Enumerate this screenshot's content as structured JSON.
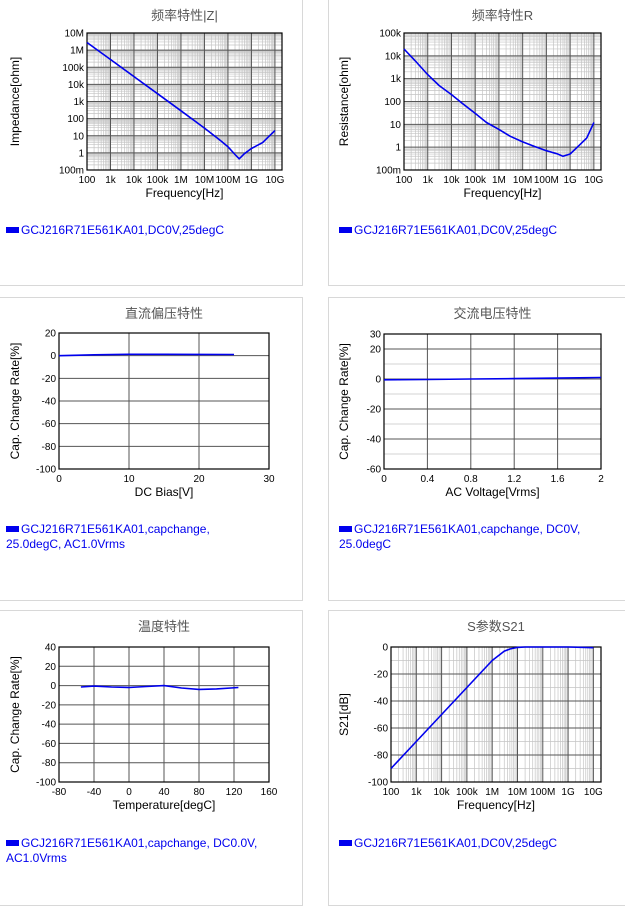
{
  "colors": {
    "series": "#0000ee",
    "grid_major": "#555555",
    "grid_minor": "#c4c4c4",
    "text": "#000000",
    "title": "#555555"
  },
  "chart_data": [
    {
      "id": "freq-z",
      "type": "line",
      "title": "频率特性|Z|",
      "xlabel": "Frequency[Hz]",
      "ylabel": "Impedance[ohm]",
      "xscale": "log",
      "yscale": "log",
      "xlim": [
        100,
        20000000000
      ],
      "ylim": [
        0.1,
        10000000
      ],
      "xticks": [
        100,
        1000,
        10000,
        100000,
        1000000,
        10000000,
        100000000,
        1000000000,
        10000000000
      ],
      "xtick_labels": [
        "100",
        "1k",
        "10k",
        "100k",
        "1M",
        "10M",
        "100M",
        "1G",
        "10G"
      ],
      "yticks": [
        0.1,
        1,
        10,
        100,
        1000,
        10000,
        100000,
        1000000,
        10000000
      ],
      "ytick_labels": [
        "100m",
        "1",
        "10",
        "100",
        "1k",
        "10k",
        "100k",
        "1M",
        "10M"
      ],
      "grid": true,
      "series": [
        {
          "name": "GCJ216R71E561KA01,DC0V,25degC",
          "x": [
            100,
            1000,
            10000,
            100000,
            1000000,
            10000000,
            50000000,
            100000000,
            200000000,
            300000000,
            500000000,
            1000000000,
            3000000000,
            10000000000
          ],
          "y": [
            2800000,
            285000,
            28500,
            2850,
            285,
            28,
            5,
            2.3,
            0.8,
            0.45,
            0.9,
            1.8,
            4,
            20
          ]
        }
      ]
    },
    {
      "id": "freq-r",
      "type": "line",
      "title": "频率特性R",
      "xlabel": "Frequency[Hz]",
      "ylabel": "Resistance[ohm]",
      "xscale": "log",
      "yscale": "log",
      "xlim": [
        100,
        20000000000
      ],
      "ylim": [
        0.1,
        100000
      ],
      "xticks": [
        100,
        1000,
        10000,
        100000,
        1000000,
        10000000,
        100000000,
        1000000000,
        10000000000
      ],
      "xtick_labels": [
        "100",
        "1k",
        "10k",
        "100k",
        "1M",
        "10M",
        "100M",
        "1G",
        "10G"
      ],
      "yticks": [
        0.1,
        1,
        10,
        100,
        1000,
        10000,
        100000
      ],
      "ytick_labels": [
        "100m",
        "1",
        "10",
        "100",
        "1k",
        "10k",
        "100k"
      ],
      "grid": true,
      "series": [
        {
          "name": "GCJ216R71E561KA01,DC0V,25degC",
          "x": [
            100,
            300,
            1000,
            3000,
            10000,
            30000,
            100000,
            300000,
            1000000,
            3000000,
            10000000,
            30000000,
            100000000,
            300000000,
            500000000,
            1000000000,
            2000000000,
            5000000000,
            10000000000
          ],
          "y": [
            20000,
            6000,
            1500,
            500,
            200,
            80,
            30,
            12,
            6,
            3,
            1.7,
            1.1,
            0.7,
            0.5,
            0.4,
            0.5,
            1,
            2.5,
            12
          ]
        }
      ]
    },
    {
      "id": "dc-bias",
      "type": "line",
      "title": "直流偏压特性",
      "xlabel": "DC Bias[V]",
      "ylabel": "Cap. Change Rate[%]",
      "xscale": "linear",
      "yscale": "linear",
      "xlim": [
        0,
        30
      ],
      "ylim": [
        -100,
        20
      ],
      "xticks": [
        0,
        10,
        20,
        30
      ],
      "xtick_labels": [
        "0",
        "10",
        "20",
        "30"
      ],
      "yticks": [
        -100,
        -80,
        -60,
        -40,
        -20,
        0,
        20
      ],
      "ytick_labels": [
        "-100",
        "-80",
        "-60",
        "-40",
        "-20",
        "0",
        "20"
      ],
      "xminor": [],
      "yminor": [],
      "grid": true,
      "series": [
        {
          "name": "GCJ216R71E561KA01,capchange, 25.0degC, AC1.0Vrms",
          "x": [
            0,
            5,
            10,
            15,
            20,
            25
          ],
          "y": [
            0,
            0.8,
            1.2,
            1.2,
            1.1,
            1.0
          ]
        }
      ]
    },
    {
      "id": "ac-voltage",
      "type": "line",
      "title": "交流电压特性",
      "xlabel": "AC Voltage[Vrms]",
      "ylabel": "Cap. Change Rate[%]",
      "xscale": "linear",
      "yscale": "linear",
      "xlim": [
        0,
        2
      ],
      "ylim": [
        -60,
        30
      ],
      "xticks": [
        0,
        0.4,
        0.8,
        1.2,
        1.6,
        2
      ],
      "xtick_labels": [
        "0",
        "0.4",
        "0.8",
        "1.2",
        "1.6",
        "2"
      ],
      "yticks": [
        -60,
        -40,
        -20,
        0,
        20,
        30
      ],
      "ytick_labels": [
        "-60",
        "-40",
        "-20",
        "0",
        "20",
        "30"
      ],
      "xminor": [],
      "yminor": [
        -50,
        -30,
        -10,
        10
      ],
      "grid": true,
      "series": [
        {
          "name": "GCJ216R71E561KA01,capchange, DC0V, 25.0degC",
          "x": [
            0,
            0.4,
            0.8,
            1.2,
            1.6,
            2
          ],
          "y": [
            -0.5,
            -0.3,
            0,
            0.3,
            0.6,
            1.0
          ]
        }
      ]
    },
    {
      "id": "temperature",
      "type": "line",
      "title": "温度特性",
      "xlabel": "Temperature[degC]",
      "ylabel": "Cap. Change Rate[%]",
      "xscale": "linear",
      "yscale": "linear",
      "xlim": [
        -80,
        160
      ],
      "ylim": [
        -100,
        40
      ],
      "xticks": [
        -80,
        -40,
        0,
        40,
        80,
        120,
        160
      ],
      "xtick_labels": [
        "-80",
        "-40",
        "0",
        "40",
        "80",
        "120",
        "160"
      ],
      "yticks": [
        -100,
        -80,
        -60,
        -40,
        -20,
        0,
        20,
        40
      ],
      "ytick_labels": [
        "-100",
        "-80",
        "-60",
        "-40",
        "-20",
        "0",
        "20",
        "40"
      ],
      "xminor": [],
      "yminor": [],
      "grid": true,
      "series": [
        {
          "name": "GCJ216R71E561KA01,capchange, DC0.0V, AC1.0Vrms",
          "x": [
            -55,
            -40,
            -20,
            0,
            20,
            40,
            60,
            80,
            100,
            125
          ],
          "y": [
            -1.5,
            -0.5,
            -1.5,
            -2,
            -1,
            0,
            -2.5,
            -4,
            -3.5,
            -2
          ]
        }
      ]
    },
    {
      "id": "s21",
      "type": "line",
      "title": "S参数S21",
      "xlabel": "Frequency[Hz]",
      "ylabel": "S21[dB]",
      "xscale": "log",
      "yscale": "linear",
      "xlim": [
        100,
        20000000000
      ],
      "ylim": [
        -100,
        0
      ],
      "xticks": [
        100,
        1000,
        10000,
        100000,
        1000000,
        10000000,
        100000000,
        1000000000,
        10000000000
      ],
      "xtick_labels": [
        "100",
        "1k",
        "10k",
        "100k",
        "1M",
        "10M",
        "100M",
        "1G",
        "10G"
      ],
      "yticks": [
        -100,
        -80,
        -60,
        -40,
        -20,
        0
      ],
      "ytick_labels": [
        "-100",
        "-80",
        "-60",
        "-40",
        "-20",
        "0"
      ],
      "yminor": [
        -90,
        -70,
        -50,
        -30,
        -10
      ],
      "grid": true,
      "series": [
        {
          "name": "GCJ216R71E561KA01,DC0V,25degC",
          "x": [
            100,
            1000,
            10000,
            100000,
            1000000,
            3000000,
            5000000,
            10000000,
            20000000,
            100000000,
            1000000000,
            10000000000
          ],
          "y": [
            -90,
            -70,
            -50,
            -30,
            -10,
            -3,
            -1.5,
            -0.3,
            0,
            0,
            0,
            -0.5
          ]
        }
      ]
    }
  ]
}
